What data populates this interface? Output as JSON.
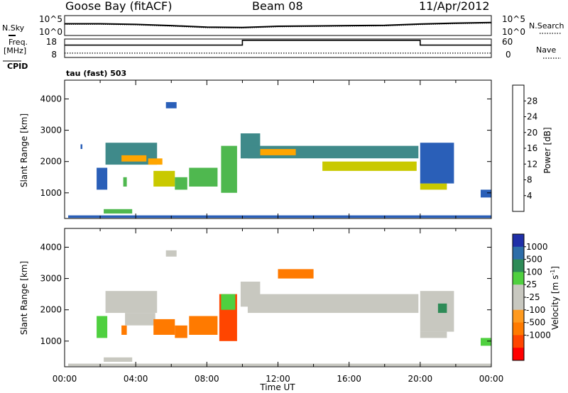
{
  "header": {
    "station": "Goose Bay (fitACF)",
    "beam": "Beam 08",
    "date": "11/Apr/2012"
  },
  "side_labels": {
    "nsky": "N.Sky",
    "freq": "Freq.",
    "mhz": "[MHz]",
    "cpid": "CPID",
    "nsearch": "N.Search",
    "nave": "Nave",
    "cpid_value": "tau (fast) 503"
  },
  "colors": {
    "power_scale": [
      "#0000ff",
      "#2a5fb8",
      "#3f8a8a",
      "#4fb84f",
      "#c9c900",
      "#ffa500",
      "#ff6a00",
      "#ff0000"
    ],
    "velocity_scale": [
      "#1f2fa8",
      "#2d6da8",
      "#2e8b57",
      "#4fd03f",
      "#c8c8c0",
      "#c8c8c0",
      "#ff9a1f",
      "#ff7a00",
      "#ff4500",
      "#ff0000"
    ]
  },
  "chart_data": [
    {
      "type": "line",
      "name": "noise-panel",
      "left_axis_ticks": [
        "10^5",
        "10^0"
      ],
      "right_axis_ticks": [
        "10^5",
        "10^0"
      ],
      "x": [
        "00:00",
        "02:00",
        "04:00",
        "06:00",
        "08:00",
        "10:00",
        "12:00",
        "14:00",
        "16:00",
        "18:00",
        "20:00",
        "22:00",
        "24:00"
      ],
      "series": [
        {
          "name": "N.Sky",
          "values": [
            3.3,
            3.3,
            3.1,
            2.7,
            2.2,
            2.1,
            2.5,
            2.6,
            2.7,
            2.8,
            3.2,
            3.5,
            3.7
          ]
        },
        {
          "name": "N.Search",
          "values": [
            3.1,
            3.1,
            2.9,
            2.5,
            2.0,
            1.9,
            2.3,
            2.4,
            2.5,
            2.6,
            3.0,
            3.3,
            3.5
          ]
        }
      ]
    },
    {
      "type": "line",
      "name": "freq-nave-panel",
      "left_axis_ticks": [
        "18",
        "8"
      ],
      "right_axis_ticks": [
        "60",
        "0"
      ],
      "freq": {
        "name": "Freq.",
        "segments": [
          {
            "from_h": 0,
            "to_h": 10,
            "mhz": 14.7
          },
          {
            "from_h": 10,
            "to_h": 20,
            "mhz": 17.3
          },
          {
            "from_h": 20,
            "to_h": 24,
            "mhz": 14.7
          }
        ],
        "ylim": [
          8,
          18
        ]
      },
      "nave": {
        "name": "Nave",
        "value": 14,
        "ylim": [
          0,
          60
        ]
      }
    },
    {
      "type": "heatmap",
      "name": "power-panel",
      "title": "",
      "xlabel": "",
      "ylabel": "Slant Range [km]",
      "ylim": [
        180,
        4600
      ],
      "xlim_hours": [
        0,
        24
      ],
      "y_ticks": [
        "1000",
        "2000",
        "3000",
        "4000"
      ],
      "colorbar": {
        "label": "Power [dB]",
        "ticks": [
          "4",
          "8",
          "12",
          "16",
          "20",
          "24",
          "28"
        ],
        "range": [
          0,
          32
        ]
      },
      "regions": [
        {
          "t0": 0.9,
          "t1": 1.0,
          "r0": 2400,
          "r1": 2550,
          "value": 6
        },
        {
          "t0": 1.8,
          "t1": 2.4,
          "r0": 1100,
          "r1": 1800,
          "value": 5
        },
        {
          "t0": 2.3,
          "t1": 5.2,
          "r0": 1900,
          "r1": 2600,
          "value": 11
        },
        {
          "t0": 3.2,
          "t1": 4.6,
          "r0": 2000,
          "r1": 2200,
          "value": 20
        },
        {
          "t0": 3.3,
          "t1": 3.5,
          "r0": 1200,
          "r1": 1500,
          "value": 14
        },
        {
          "t0": 4.7,
          "t1": 5.5,
          "r0": 1900,
          "r1": 2100,
          "value": 21
        },
        {
          "t0": 5.0,
          "t1": 6.2,
          "r0": 1200,
          "r1": 1700,
          "value": 16
        },
        {
          "t0": 6.2,
          "t1": 6.9,
          "r0": 1100,
          "r1": 1500,
          "value": 12
        },
        {
          "t0": 7.0,
          "t1": 8.6,
          "r0": 1200,
          "r1": 1800,
          "value": 13
        },
        {
          "t0": 8.8,
          "t1": 9.7,
          "r0": 1000,
          "r1": 2500,
          "value": 12
        },
        {
          "t0": 9.9,
          "t1": 11.0,
          "r0": 2100,
          "r1": 2900,
          "value": 8
        },
        {
          "t0": 10.3,
          "t1": 19.9,
          "r0": 2100,
          "r1": 2500,
          "value": 9
        },
        {
          "t0": 11.0,
          "t1": 13.0,
          "r0": 2200,
          "r1": 2400,
          "value": 20
        },
        {
          "t0": 14.5,
          "t1": 19.8,
          "r0": 1700,
          "r1": 2000,
          "value": 16
        },
        {
          "t0": 20.0,
          "t1": 21.5,
          "r0": 1100,
          "r1": 1300,
          "value": 19
        },
        {
          "t0": 20.0,
          "t1": 21.9,
          "r0": 1300,
          "r1": 2600,
          "value": 7
        },
        {
          "t0": 5.7,
          "t1": 6.3,
          "r0": 3700,
          "r1": 3900,
          "value": 5
        },
        {
          "t0": 23.4,
          "t1": 24.0,
          "r0": 850,
          "r1": 1100,
          "value": 5
        },
        {
          "t0": 2.2,
          "t1": 3.8,
          "r0": 340,
          "r1": 480,
          "value": 14
        },
        {
          "t0": 0.2,
          "t1": 24.0,
          "r0": 200,
          "r1": 280,
          "value": 6
        }
      ]
    },
    {
      "type": "heatmap",
      "name": "velocity-panel",
      "title": "",
      "xlabel": "Time UT",
      "ylabel": "Slant Range [km]",
      "ylim": [
        180,
        4600
      ],
      "xlim_hours": [
        0,
        24
      ],
      "x_ticks": [
        "00:00",
        "04:00",
        "08:00",
        "12:00",
        "16:00",
        "20:00",
        "00:00"
      ],
      "y_ticks": [
        "1000",
        "2000",
        "3000",
        "4000"
      ],
      "colorbar": {
        "label": "Velocity [m s",
        "label_sup": "-1",
        "label_end": "]",
        "ticks": [
          "1000",
          "500",
          "100",
          "25",
          "-25",
          "-100",
          "-500",
          "-1000"
        ]
      },
      "regions": [
        {
          "t0": 1.8,
          "t1": 2.4,
          "r0": 1100,
          "r1": 1800,
          "value": 3
        },
        {
          "t0": 2.3,
          "t1": 5.2,
          "r0": 1900,
          "r1": 2600,
          "value": 4
        },
        {
          "t0": 3.2,
          "t1": 3.5,
          "r0": 1200,
          "r1": 1500,
          "value": 7
        },
        {
          "t0": 3.4,
          "t1": 5.1,
          "r0": 1500,
          "r1": 1900,
          "value": 5
        },
        {
          "t0": 5.0,
          "t1": 6.2,
          "r0": 1200,
          "r1": 1700,
          "value": 7
        },
        {
          "t0": 6.2,
          "t1": 6.9,
          "r0": 1100,
          "r1": 1500,
          "value": 7
        },
        {
          "t0": 7.0,
          "t1": 8.6,
          "r0": 1200,
          "r1": 1800,
          "value": 7
        },
        {
          "t0": 8.7,
          "t1": 9.7,
          "r0": 1000,
          "r1": 2500,
          "value": 8
        },
        {
          "t0": 8.8,
          "t1": 9.6,
          "r0": 2000,
          "r1": 2500,
          "value": 3
        },
        {
          "t0": 9.9,
          "t1": 11.0,
          "r0": 2100,
          "r1": 2900,
          "value": 4
        },
        {
          "t0": 10.3,
          "t1": 19.9,
          "r0": 1900,
          "r1": 2500,
          "value": 4
        },
        {
          "t0": 12.0,
          "t1": 14.0,
          "r0": 3000,
          "r1": 3300,
          "value": 7
        },
        {
          "t0": 20.0,
          "t1": 21.5,
          "r0": 1100,
          "r1": 1300,
          "value": 4
        },
        {
          "t0": 20.0,
          "t1": 21.9,
          "r0": 1300,
          "r1": 2600,
          "value": 4
        },
        {
          "t0": 21.0,
          "t1": 21.5,
          "r0": 1900,
          "r1": 2200,
          "value": 2
        },
        {
          "t0": 5.7,
          "t1": 6.3,
          "r0": 3700,
          "r1": 3900,
          "value": 4
        },
        {
          "t0": 23.4,
          "t1": 24.0,
          "r0": 850,
          "r1": 1100,
          "value": 3
        },
        {
          "t0": 2.2,
          "t1": 3.8,
          "r0": 340,
          "r1": 480,
          "value": 4
        },
        {
          "t0": 0.2,
          "t1": 24.0,
          "r0": 200,
          "r1": 280,
          "value": 4
        }
      ]
    }
  ]
}
